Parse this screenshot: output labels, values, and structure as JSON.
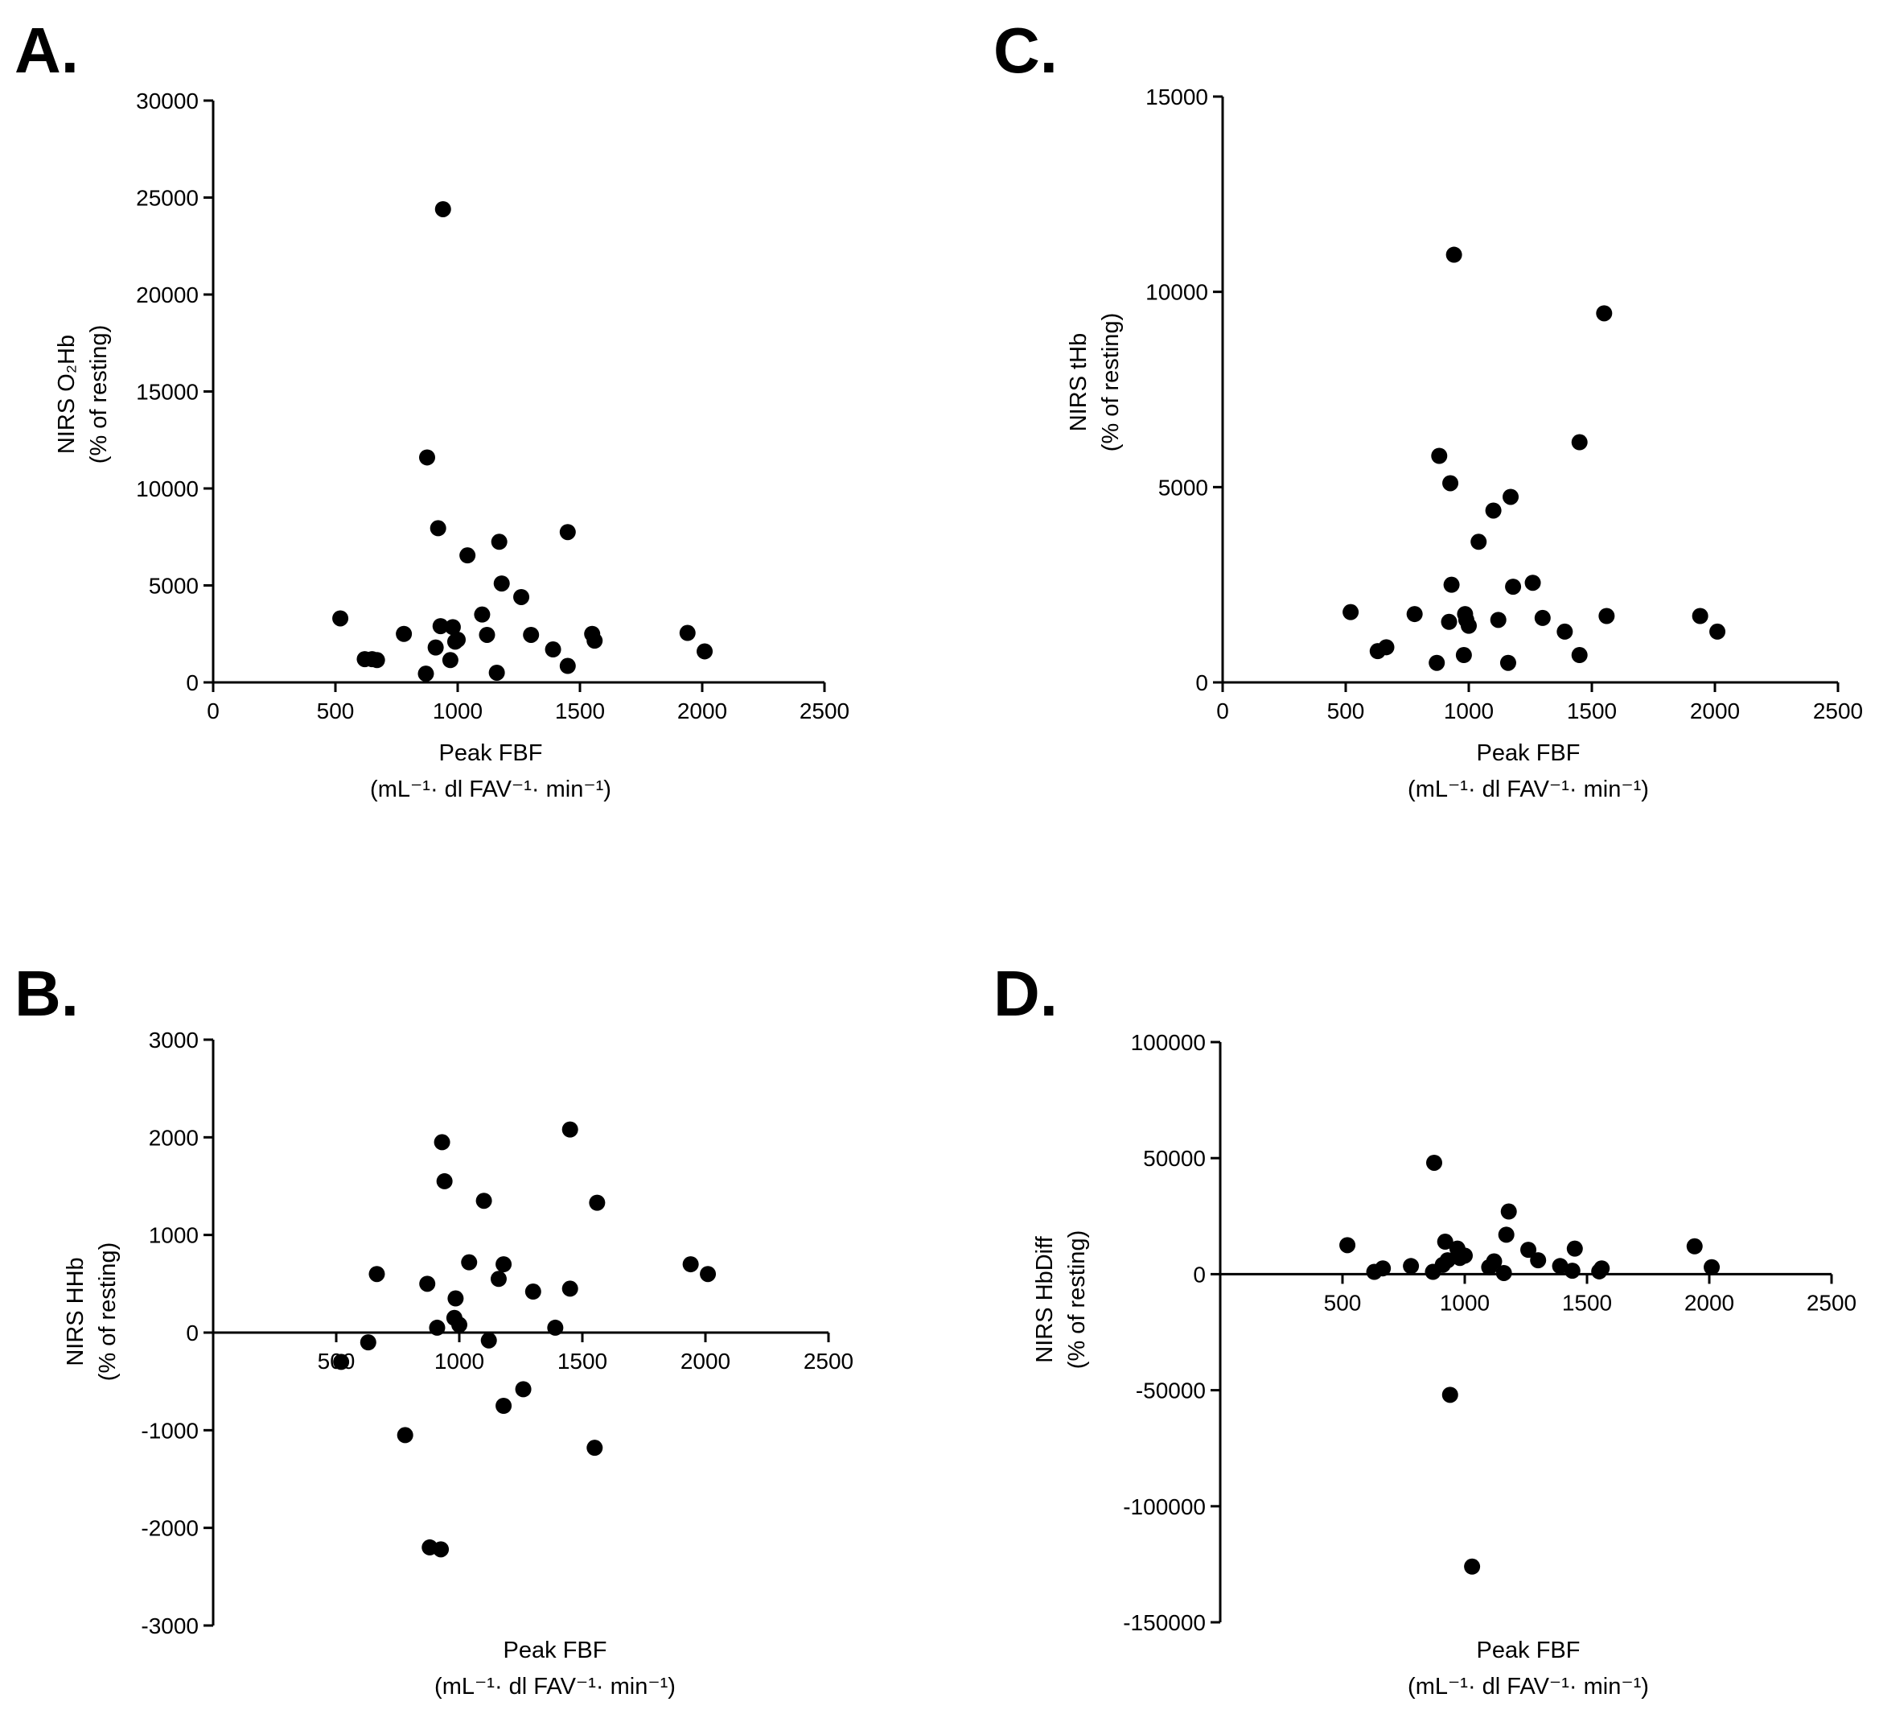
{
  "chart_data": [
    {
      "panel": "A.",
      "type": "scatter",
      "xlabel": "Peak FBF",
      "xunit": "(mL⁻¹· dl FAV⁻¹· min⁻¹)",
      "ylabel_line1": "NIRS O₂Hb",
      "ylabel_line2": "(% of resting)",
      "xlim": [
        0,
        2500
      ],
      "ylim": [
        0,
        30000
      ],
      "xticks": [
        0,
        500,
        1000,
        1500,
        2000,
        2500
      ],
      "yticks": [
        0,
        5000,
        10000,
        15000,
        20000,
        25000,
        30000
      ],
      "xtick_labels": [
        "0",
        "500",
        "1000",
        "1500",
        "2000",
        "2500"
      ],
      "ytick_labels": [
        "0",
        "5000",
        "10000",
        "15000",
        "20000",
        "25000",
        "30000"
      ],
      "x_axis_at": 0,
      "grid": false,
      "points": [
        [
          520,
          3300
        ],
        [
          620,
          1200
        ],
        [
          650,
          1200
        ],
        [
          670,
          1150
        ],
        [
          780,
          2500
        ],
        [
          870,
          450
        ],
        [
          875,
          11600
        ],
        [
          910,
          1800
        ],
        [
          920,
          7950
        ],
        [
          930,
          2900
        ],
        [
          940,
          24400
        ],
        [
          970,
          1150
        ],
        [
          980,
          2850
        ],
        [
          990,
          2100
        ],
        [
          1000,
          2200
        ],
        [
          1040,
          6550
        ],
        [
          1100,
          3500
        ],
        [
          1120,
          2450
        ],
        [
          1160,
          500
        ],
        [
          1170,
          7250
        ],
        [
          1180,
          5100
        ],
        [
          1260,
          4400
        ],
        [
          1300,
          2450
        ],
        [
          1390,
          1700
        ],
        [
          1450,
          850
        ],
        [
          1450,
          7750
        ],
        [
          1550,
          2500
        ],
        [
          1560,
          2150
        ],
        [
          1940,
          2550
        ],
        [
          2010,
          1600
        ]
      ]
    },
    {
      "panel": "C.",
      "type": "scatter",
      "xlabel": "Peak FBF",
      "xunit": "(mL⁻¹· dl FAV⁻¹· min⁻¹)",
      "ylabel_line1": "NIRS tHb",
      "ylabel_line2": "(% of resting)",
      "xlim": [
        0,
        2500
      ],
      "ylim": [
        0,
        15000
      ],
      "xticks": [
        0,
        500,
        1000,
        1500,
        2000,
        2500
      ],
      "yticks": [
        0,
        5000,
        10000,
        15000
      ],
      "xtick_labels": [
        "0",
        "500",
        "1000",
        "1500",
        "2000",
        "2500"
      ],
      "ytick_labels": [
        "0",
        "5000",
        "10000",
        "15000"
      ],
      "x_axis_at": 0,
      "grid": false,
      "points": [
        [
          520,
          1800
        ],
        [
          630,
          800
        ],
        [
          665,
          900
        ],
        [
          780,
          1750
        ],
        [
          870,
          500
        ],
        [
          880,
          5800
        ],
        [
          920,
          1550
        ],
        [
          925,
          5100
        ],
        [
          930,
          2500
        ],
        [
          940,
          10950
        ],
        [
          980,
          700
        ],
        [
          985,
          1750
        ],
        [
          990,
          1600
        ],
        [
          1000,
          1450
        ],
        [
          1040,
          3600
        ],
        [
          1100,
          4400
        ],
        [
          1120,
          1600
        ],
        [
          1160,
          500
        ],
        [
          1170,
          4750
        ],
        [
          1180,
          2450
        ],
        [
          1260,
          2550
        ],
        [
          1300,
          1650
        ],
        [
          1390,
          1300
        ],
        [
          1450,
          700
        ],
        [
          1450,
          6150
        ],
        [
          1550,
          9450
        ],
        [
          1560,
          1700
        ],
        [
          1940,
          1700
        ],
        [
          2010,
          1300
        ]
      ]
    },
    {
      "panel": "B.",
      "type": "scatter",
      "xlabel": "Peak FBF",
      "xunit": "(mL⁻¹· dl FAV⁻¹· min⁻¹)",
      "ylabel_line1": "NIRS HHb",
      "ylabel_line2": "(% of resting)",
      "xlim": [
        0,
        2500
      ],
      "ylim": [
        -3000,
        3000
      ],
      "xticks": [
        500,
        1000,
        1500,
        2000,
        2500
      ],
      "yticks": [
        -3000,
        -2000,
        -1000,
        0,
        1000,
        2000,
        3000
      ],
      "xtick_labels": [
        "500",
        "1000",
        "1500",
        "2000",
        "2500"
      ],
      "ytick_labels": [
        "-3000",
        "-2000",
        "-1000",
        "0",
        "1000",
        "2000",
        "3000"
      ],
      "x_axis_at": 0,
      "grid": false,
      "points": [
        [
          520,
          -300
        ],
        [
          630,
          -100
        ],
        [
          665,
          600
        ],
        [
          780,
          -1050
        ],
        [
          870,
          500
        ],
        [
          880,
          -2200
        ],
        [
          910,
          50
        ],
        [
          925,
          -2220
        ],
        [
          930,
          1950
        ],
        [
          940,
          1550
        ],
        [
          980,
          150
        ],
        [
          985,
          350
        ],
        [
          1000,
          80
        ],
        [
          1040,
          720
        ],
        [
          1100,
          1350
        ],
        [
          1120,
          -80
        ],
        [
          1160,
          550
        ],
        [
          1180,
          700
        ],
        [
          1180,
          -750
        ],
        [
          1260,
          -580
        ],
        [
          1300,
          420
        ],
        [
          1390,
          50
        ],
        [
          1450,
          450
        ],
        [
          1450,
          2080
        ],
        [
          1550,
          -1180
        ],
        [
          1560,
          1330
        ],
        [
          1940,
          700
        ],
        [
          2010,
          600
        ]
      ]
    },
    {
      "panel": "D.",
      "type": "scatter",
      "xlabel": "Peak FBF",
      "xunit": "(mL⁻¹· dl FAV⁻¹· min⁻¹)",
      "ylabel_line1": "NIRS HbDiff",
      "ylabel_line2": "(% of resting)",
      "xlim": [
        0,
        2500
      ],
      "ylim": [
        -150000,
        100000
      ],
      "xticks": [
        500,
        1000,
        1500,
        2000,
        2500
      ],
      "yticks": [
        -150000,
        -100000,
        -50000,
        0,
        50000,
        100000
      ],
      "xtick_labels": [
        "500",
        "1000",
        "1500",
        "2000",
        "2500"
      ],
      "ytick_labels": [
        "-150000",
        "-100000",
        "-50000",
        "0",
        "50000",
        "100000"
      ],
      "x_axis_at": 0,
      "grid": false,
      "points": [
        [
          520,
          12500
        ],
        [
          630,
          1000
        ],
        [
          665,
          2500
        ],
        [
          780,
          3500
        ],
        [
          870,
          1000
        ],
        [
          875,
          48000
        ],
        [
          910,
          4000
        ],
        [
          920,
          14000
        ],
        [
          930,
          6000
        ],
        [
          940,
          -52000
        ],
        [
          970,
          11000
        ],
        [
          980,
          7000
        ],
        [
          1000,
          8000
        ],
        [
          1030,
          -126000
        ],
        [
          1100,
          3000
        ],
        [
          1120,
          5500
        ],
        [
          1160,
          500
        ],
        [
          1170,
          17000
        ],
        [
          1180,
          27000
        ],
        [
          1260,
          10500
        ],
        [
          1300,
          6000
        ],
        [
          1390,
          3500
        ],
        [
          1440,
          1500
        ],
        [
          1450,
          11000
        ],
        [
          1550,
          1200
        ],
        [
          1560,
          2500
        ],
        [
          1940,
          12000
        ],
        [
          2010,
          3000
        ]
      ]
    }
  ]
}
